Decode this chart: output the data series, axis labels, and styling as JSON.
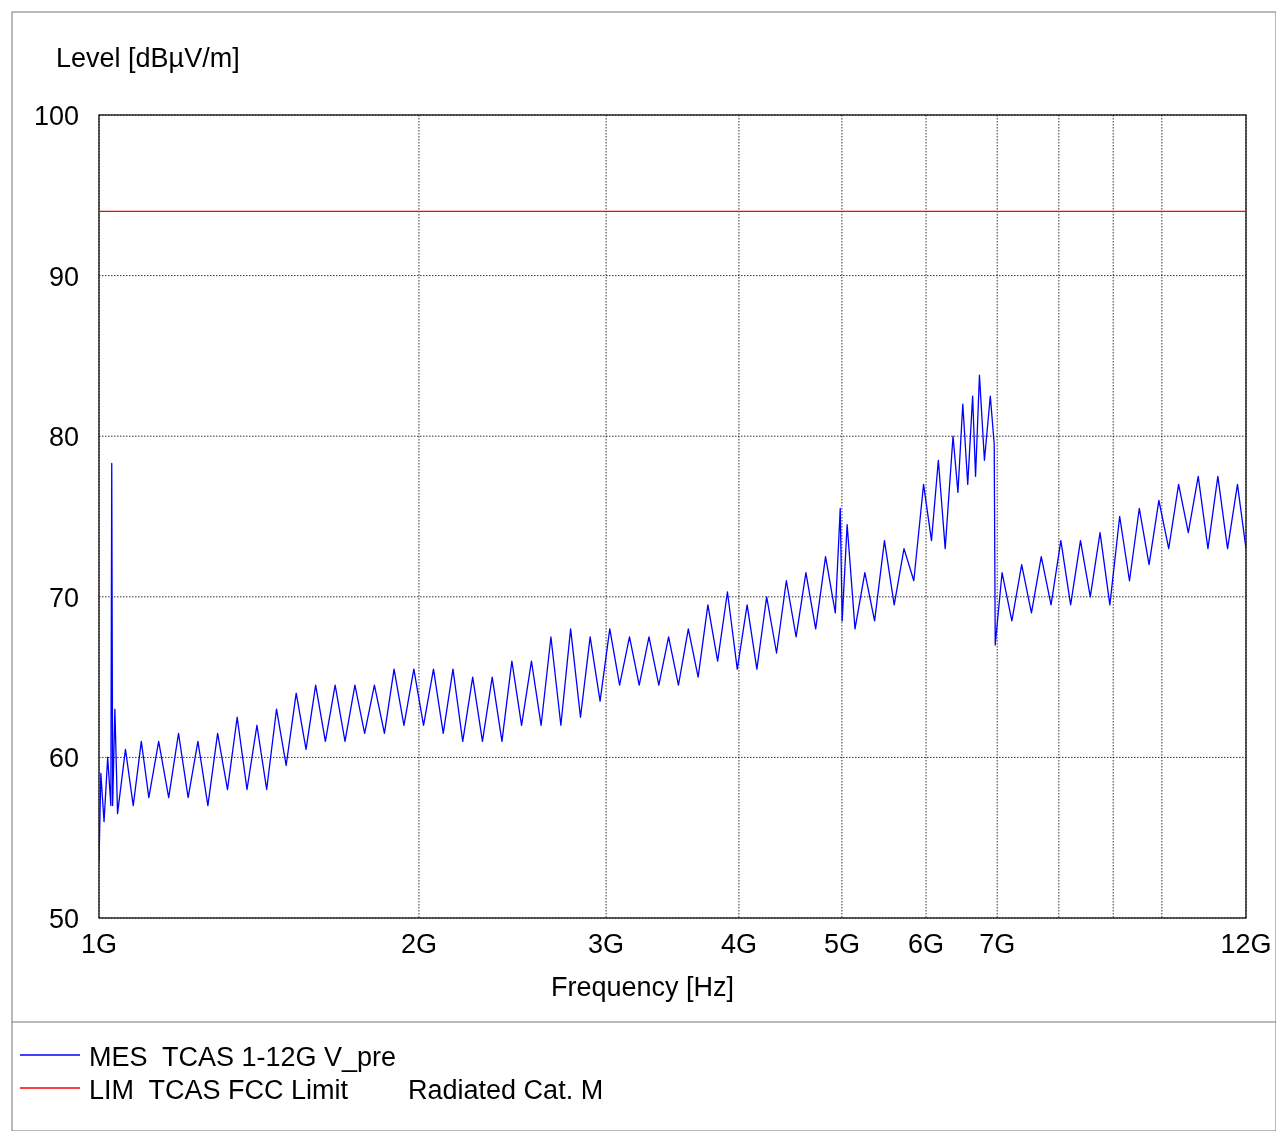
{
  "chart_data": {
    "type": "line",
    "xlabel": "Frequency [Hz]",
    "ylabel": "Level [dBµV/m]",
    "log": "x",
    "grid": true,
    "legend": "bottom",
    "line_style": "solid",
    "xlim": [
      1,
      12
    ],
    "ylim": [
      50,
      100
    ],
    "xticks": [
      {
        "value": 1,
        "label": "1G"
      },
      {
        "value": 2,
        "label": "2G"
      },
      {
        "value": 3,
        "label": "3G"
      },
      {
        "value": 4,
        "label": "4G"
      },
      {
        "value": 5,
        "label": "5G"
      },
      {
        "value": 6,
        "label": "6G"
      },
      {
        "value": 7,
        "label": "7G"
      },
      {
        "value": 8,
        "label": null
      },
      {
        "value": 9,
        "label": null
      },
      {
        "value": 10,
        "label": null
      },
      {
        "value": 12,
        "label": "12G"
      }
    ],
    "yticks": [
      50,
      60,
      70,
      80,
      90,
      100
    ],
    "series": [
      {
        "name": "MES  TCAS 1-12G V_pre",
        "color": "#0000ff",
        "x": [
          1.0,
          1.004,
          1.011,
          1.019,
          1.026,
          1.028,
          1.03,
          1.035,
          1.041,
          1.059,
          1.077,
          1.096,
          1.114,
          1.138,
          1.163,
          1.188,
          1.213,
          1.239,
          1.266,
          1.293,
          1.321,
          1.349,
          1.378,
          1.408,
          1.438,
          1.469,
          1.5,
          1.533,
          1.566,
          1.599,
          1.633,
          1.668,
          1.704,
          1.741,
          1.778,
          1.816,
          1.856,
          1.895,
          1.936,
          1.978,
          2.02,
          2.064,
          2.108,
          2.153,
          2.199,
          2.247,
          2.295,
          2.344,
          2.394,
          2.446,
          2.498,
          2.552,
          2.606,
          2.662,
          2.72,
          2.778,
          2.838,
          2.898,
          2.961,
          3.024,
          3.089,
          3.156,
          3.223,
          3.292,
          3.363,
          3.435,
          3.509,
          3.585,
          3.662,
          3.74,
          3.82,
          3.902,
          3.986,
          4.072,
          4.159,
          4.248,
          4.34,
          4.433,
          4.528,
          4.625,
          4.724,
          4.826,
          4.929,
          4.982,
          5.003,
          5.057,
          5.144,
          5.255,
          5.367,
          5.483,
          5.6,
          5.72,
          5.843,
          5.968,
          6.071,
          6.162,
          6.254,
          6.361,
          6.429,
          6.497,
          6.567,
          6.637,
          6.679,
          6.736,
          6.809,
          6.896,
          6.955,
          6.97,
          7.074,
          7.226,
          7.381,
          7.539,
          7.701,
          7.866,
          8.035,
          8.207,
          8.384,
          8.564,
          8.747,
          8.935,
          9.127,
          9.323,
          9.523,
          9.727,
          9.936,
          10.15,
          10.37,
          10.59,
          10.82,
          11.05,
          11.29,
          11.53,
          11.78,
          12.0
        ],
        "values": [
          53.5,
          59,
          56,
          60,
          57,
          78.3,
          57,
          63,
          56.5,
          60.5,
          57,
          61,
          57.5,
          61,
          57.5,
          61.5,
          57.5,
          61,
          57,
          61.5,
          58,
          62.5,
          58,
          62,
          58,
          63,
          59.5,
          64,
          60.5,
          64.5,
          61,
          64.5,
          61,
          64.5,
          61.5,
          64.5,
          61.5,
          65.5,
          62,
          65.5,
          62,
          65.5,
          61.5,
          65.5,
          61,
          65,
          61,
          65,
          61,
          66,
          62,
          66,
          62,
          67.5,
          62,
          68,
          62.5,
          67.5,
          63.5,
          68,
          64.5,
          67.5,
          64.5,
          67.5,
          64.5,
          67.5,
          64.5,
          68,
          65,
          69.5,
          66,
          70.3,
          65.5,
          69.5,
          65.5,
          70,
          66.5,
          71,
          67.5,
          71.5,
          68,
          72.5,
          69,
          75.5,
          68.5,
          74.5,
          68,
          71.5,
          68.5,
          73.5,
          69.5,
          73,
          71,
          77,
          73.5,
          78.5,
          73,
          80,
          76.5,
          82,
          77,
          82.5,
          77.5,
          83.8,
          78.5,
          82.5,
          79.5,
          67,
          71.5,
          68.5,
          72,
          69,
          72.5,
          69.5,
          73.5,
          69.5,
          73.5,
          70,
          74,
          69.5,
          75,
          71,
          75.5,
          72,
          76,
          73,
          77,
          74,
          77.5,
          73,
          77.5,
          73,
          77,
          73
        ]
      },
      {
        "name": "LIM  TCAS FCC Limit        Radiated Cat. M",
        "color": "#ff0000",
        "x": [
          1,
          12
        ],
        "values": [
          94,
          94
        ]
      }
    ]
  }
}
